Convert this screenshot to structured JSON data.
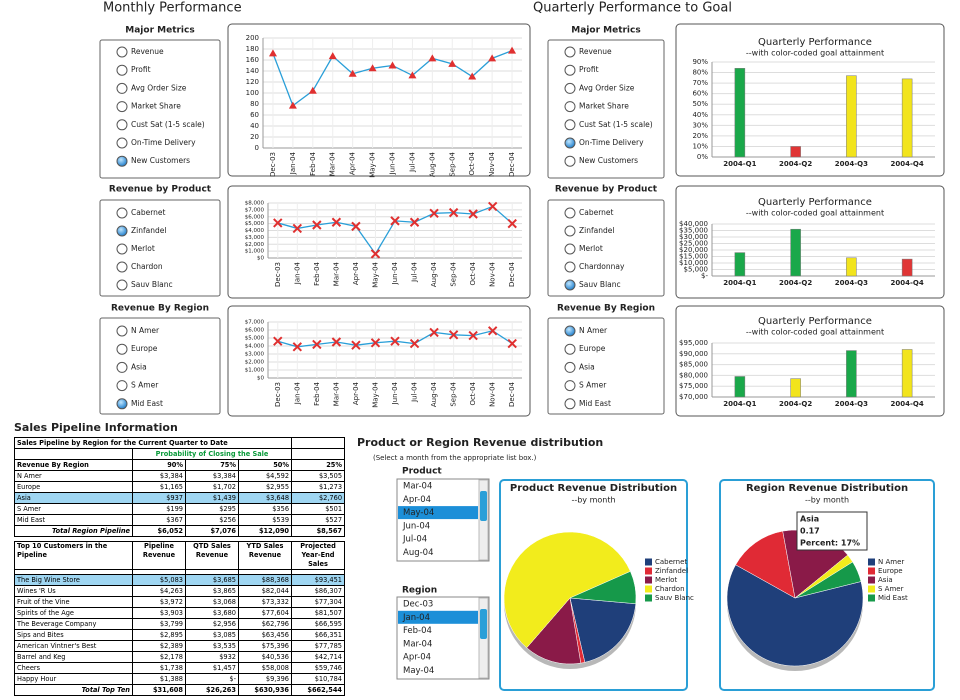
{
  "header": {
    "left_title": "Monthly Performance",
    "right_title": "Quarterly Performance to Goal"
  },
  "panels": [
    {
      "title": "Major Metrics",
      "options": [
        "Revenue",
        "Profit",
        "Avg Order Size",
        "Market Share",
        "Cust Sat (1-5 scale)",
        "On-Time Delivery",
        "New Customers"
      ],
      "selected": "New Customers"
    },
    {
      "title": "Revenue by Product",
      "options": [
        "Cabernet",
        "Zinfandel",
        "Merlot",
        "Chardon",
        "Sauv Blanc"
      ],
      "selected": "Zinfandel"
    },
    {
      "title": "Revenue By Region",
      "options": [
        "N Amer",
        "Europe",
        "Asia",
        "S Amer",
        "Mid East"
      ],
      "selected": "Mid East"
    },
    {
      "title": "Major Metrics",
      "options": [
        "Revenue",
        "Profit",
        "Avg Order Size",
        "Market Share",
        "Cust Sat (1-5 scale)",
        "On-Time Delivery",
        "New Customers"
      ],
      "selected": "On-Time Delivery"
    },
    {
      "title": "Revenue by Product",
      "options": [
        "Cabernet",
        "Zinfandel",
        "Merlot",
        "Chardonnay",
        "Sauv Blanc"
      ],
      "selected": "Sauv Blanc"
    },
    {
      "title": "Revenue By Region",
      "options": [
        "N Amer",
        "Europe",
        "Asia",
        "S Amer",
        "Mid East"
      ],
      "selected": "N Amer"
    }
  ],
  "chart_data": [
    {
      "type": "line",
      "categories": [
        "Dec-03",
        "Jan-04",
        "Feb-04",
        "Mar-04",
        "Apr-04",
        "May-04",
        "Jun-04",
        "Jul-04",
        "Aug-04",
        "Sep-04",
        "Oct-04",
        "Nov-04",
        "Dec-04"
      ],
      "values": [
        172,
        77,
        104,
        167,
        135,
        145,
        150,
        132,
        163,
        153,
        130,
        163,
        177
      ],
      "color": "#2a9fd8",
      "marker": "triangle",
      "marker_color": "#e03030",
      "ylim": [
        0,
        200
      ],
      "yticks": [
        0,
        20,
        40,
        60,
        80,
        100,
        120,
        140,
        160,
        180,
        200
      ],
      "grid": true
    },
    {
      "type": "line",
      "categories": [
        "Dec-03",
        "Jan-04",
        "Feb-04",
        "Mar-04",
        "Apr-04",
        "May-04",
        "Jun-04",
        "Jul-04",
        "Aug-04",
        "Sep-04",
        "Oct-04",
        "Nov-04",
        "Dec-04"
      ],
      "values": [
        5100,
        4300,
        4800,
        5200,
        4600,
        600,
        5400,
        5200,
        6500,
        6600,
        6400,
        7500,
        5000
      ],
      "color": "#2a9fd8",
      "marker": "x",
      "marker_color": "#e03030",
      "ylim": [
        0,
        8000
      ],
      "yticks": [
        {
          "value": 0,
          "label": "$0"
        },
        {
          "value": 1000,
          "label": "$1,000"
        },
        {
          "value": 2000,
          "label": "$2,000"
        },
        {
          "value": 3000,
          "label": "$3,000"
        },
        {
          "value": 4000,
          "label": "$4,000"
        },
        {
          "value": 5000,
          "label": "$5,000"
        },
        {
          "value": 6000,
          "label": "$6,000"
        },
        {
          "value": 7000,
          "label": "$7,000"
        },
        {
          "value": 8000,
          "label": "$8,000"
        }
      ],
      "grid": true
    },
    {
      "type": "line",
      "categories": [
        "Dec-03",
        "Jan-04",
        "Feb-04",
        "Mar-04",
        "Apr-04",
        "May-04",
        "Jun-04",
        "Jul-04",
        "Aug-04",
        "Sep-04",
        "Oct-04",
        "Nov-04",
        "Dec-04"
      ],
      "values": [
        4600,
        3900,
        4200,
        4500,
        4100,
        4400,
        4600,
        4300,
        5700,
        5400,
        5300,
        5900,
        4300
      ],
      "color": "#2a9fd8",
      "marker": "x",
      "marker_color": "#e03030",
      "ylim": [
        0,
        7000
      ],
      "yticks": [
        {
          "value": 0,
          "label": "$0"
        },
        {
          "value": 1000,
          "label": "$1,000"
        },
        {
          "value": 2000,
          "label": "$2,000"
        },
        {
          "value": 3000,
          "label": "$3,000"
        },
        {
          "value": 4000,
          "label": "$4,000"
        },
        {
          "value": 5000,
          "label": "$5,000"
        },
        {
          "value": 6000,
          "label": "$6,000"
        },
        {
          "value": 7000,
          "label": "$7,000"
        }
      ],
      "grid": true
    },
    {
      "type": "bar",
      "title": "Quarterly Performance",
      "subtitle": "--with color-coded goal attainment",
      "categories": [
        "2004-Q1",
        "2004-Q2",
        "2004-Q3",
        "2004-Q4"
      ],
      "values": [
        84,
        10,
        77,
        74
      ],
      "colors": [
        "#1aa84a",
        "#e03535",
        "#f2e41c",
        "#f2e41c"
      ],
      "ylim": [
        0,
        90
      ],
      "yticks": [
        {
          "value": 0,
          "label": "0%"
        },
        {
          "value": 10,
          "label": "10%"
        },
        {
          "value": 20,
          "label": "20%"
        },
        {
          "value": 30,
          "label": "30%"
        },
        {
          "value": 40,
          "label": "40%"
        },
        {
          "value": 50,
          "label": "50%"
        },
        {
          "value": 60,
          "label": "60%"
        },
        {
          "value": 70,
          "label": "70%"
        },
        {
          "value": 80,
          "label": "80%"
        },
        {
          "value": 90,
          "label": "90%"
        }
      ],
      "grid": true
    },
    {
      "type": "bar",
      "title": "Quarterly Performance",
      "subtitle": "--with color-coded goal attainment",
      "categories": [
        "2004-Q1",
        "2004-Q2",
        "2004-Q3",
        "2004-Q4"
      ],
      "values": [
        18000,
        36000,
        14000,
        13000
      ],
      "colors": [
        "#1aa84a",
        "#1aa84a",
        "#f2e41c",
        "#e03535"
      ],
      "ylim": [
        0,
        40000
      ],
      "yticks": [
        {
          "value": 0,
          "label": "$-"
        },
        {
          "value": 5000,
          "label": "$5,000"
        },
        {
          "value": 10000,
          "label": "$10,000"
        },
        {
          "value": 15000,
          "label": "$15,000"
        },
        {
          "value": 20000,
          "label": "$20,000"
        },
        {
          "value": 25000,
          "label": "$25,000"
        },
        {
          "value": 30000,
          "label": "$30,000"
        },
        {
          "value": 35000,
          "label": "$35,000"
        },
        {
          "value": 40000,
          "label": "$40,000"
        }
      ],
      "grid": true
    },
    {
      "type": "bar",
      "title": "Quarterly Performance",
      "subtitle": "--with color-coded goal attainment",
      "categories": [
        "2004-Q1",
        "2004-Q2",
        "2004-Q3",
        "2004-Q4"
      ],
      "values": [
        79500,
        78500,
        91500,
        92000
      ],
      "colors": [
        "#1aa84a",
        "#f2e41c",
        "#1aa84a",
        "#f2e41c"
      ],
      "ylim": [
        70000,
        95000
      ],
      "yticks": [
        {
          "value": 70000,
          "label": "$70,000"
        },
        {
          "value": 75000,
          "label": "$75,000"
        },
        {
          "value": 80000,
          "label": "$80,000"
        },
        {
          "value": 85000,
          "label": "$85,000"
        },
        {
          "value": 90000,
          "label": "$90,000"
        },
        {
          "value": 95000,
          "label": "$95,000"
        }
      ],
      "grid": true
    },
    {
      "type": "pie",
      "title": "Product Revenue Distribution",
      "subtitle": "--by month",
      "categories": [
        "Cabernet",
        "Zinfandel",
        "Merlot",
        "Chardon",
        "Sauv Blanc"
      ],
      "values": [
        20,
        1,
        14,
        57,
        8
      ],
      "colors": [
        "#1f3f7a",
        "#e02a35",
        "#8a1a48",
        "#f2ec1c",
        "#16994a"
      ],
      "legend": "right"
    },
    {
      "type": "pie",
      "title": "Region Revenue Distribution",
      "subtitle": "--by month",
      "categories": [
        "N Amer",
        "Europe",
        "Asia",
        "S Amer",
        "Mid East"
      ],
      "values": [
        0.62,
        0.14,
        0.17,
        0.02,
        0.05
      ],
      "colors": [
        "#1f3f7a",
        "#e02a35",
        "#8a1a48",
        "#f2ec1c",
        "#16994a"
      ],
      "legend": "right",
      "tooltip": {
        "category": "Asia",
        "value": 0.17,
        "percent": "Percent: 17%"
      }
    }
  ],
  "pipeline": {
    "title": "Sales Pipeline Information",
    "region_table": {
      "caption": "Sales Pipeline by Region for the Current Quarter to Date",
      "subcaption": "Probability of Closing the Sale",
      "header": [
        "Revenue By Region",
        "90%",
        "75%",
        "50%",
        "25%"
      ],
      "rows": [
        [
          "N Amer",
          "$3,384",
          "$3,384",
          "$4,592",
          "$3,505"
        ],
        [
          "Europe",
          "$1,165",
          "$1,702",
          "$2,955",
          "$1,273"
        ],
        [
          "Asia",
          "$937",
          "$1,439",
          "$3,648",
          "$2,760"
        ],
        [
          "S Amer",
          "$199",
          "$295",
          "$356",
          "$501"
        ],
        [
          "Mid East",
          "$367",
          "$256",
          "$539",
          "$527"
        ]
      ],
      "total": [
        "Total Region Pipeline",
        "$6,052",
        "$7,076",
        "$12,090",
        "$8,567"
      ],
      "highlight_row": 2
    },
    "customer_table": {
      "header": [
        "Top 10 Customers in the Pipeline",
        "Pipeline Revenue",
        "QTD Sales Revenue",
        "YTD Sales Revenue",
        "Projected Year-End Sales"
      ],
      "rows": [
        [
          "The Big Wine Store",
          "$5,083",
          "$3,685",
          "$88,368",
          "$93,451"
        ],
        [
          "Wines 'R Us",
          "$4,263",
          "$3,865",
          "$82,044",
          "$86,307"
        ],
        [
          "Fruit of the Vine",
          "$3,972",
          "$3,068",
          "$73,332",
          "$77,304"
        ],
        [
          "Spirits of the Age",
          "$3,903",
          "$3,680",
          "$77,604",
          "$81,507"
        ],
        [
          "The Beverage Company",
          "$3,799",
          "$2,956",
          "$62,796",
          "$66,595"
        ],
        [
          "Sips and Bites",
          "$2,895",
          "$3,085",
          "$63,456",
          "$66,351"
        ],
        [
          "American Vintner's Best",
          "$2,389",
          "$3,535",
          "$75,396",
          "$77,785"
        ],
        [
          "Barrel and Keg",
          "$2,178",
          "$932",
          "$40,536",
          "$42,714"
        ],
        [
          "Cheers",
          "$1,738",
          "$1,457",
          "$58,008",
          "$59,746"
        ],
        [
          "Happy Hour",
          "$1,388",
          "$-",
          "$9,396",
          "$10,784"
        ]
      ],
      "total": [
        "Total Top Ten",
        "$31,608",
        "$26,263",
        "$630,936",
        "$662,544"
      ],
      "highlight_row": 0
    }
  },
  "distribution": {
    "title": "Product or Region Revenue distribution",
    "note": "(Select a month from the appropriate list box.)",
    "lists": [
      {
        "label": "Product",
        "items": [
          "Mar-04",
          "Apr-04",
          "May-04",
          "Jun-04",
          "Jul-04",
          "Aug-04"
        ],
        "selected": "May-04"
      },
      {
        "label": "Region",
        "items": [
          "Dec-03",
          "Jan-04",
          "Feb-04",
          "Mar-04",
          "Apr-04",
          "May-04"
        ],
        "selected": "Jan-04"
      }
    ]
  }
}
